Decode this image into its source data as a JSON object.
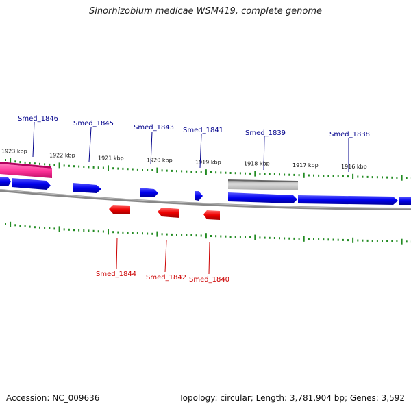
{
  "title": "Sinorhizobium medicae WSM419, complete genome",
  "footer": {
    "accession": "Accession: NC_009636",
    "summary": "Topology: circular; Length: 3,781,904 bp; Genes: 3,592"
  },
  "colors": {
    "forward_gene": "#0000ee",
    "reverse_gene": "#ee0000",
    "highlight_gene": "#ff3399",
    "other_feature": "#bbbbbb",
    "ticks": "#228b22",
    "backbone": "#888888",
    "forward_label": "#00008b",
    "reverse_label": "#cc0000"
  },
  "scale": {
    "labels": [
      "1923 kbp",
      "1922 kbp",
      "1921 kbp",
      "1920 kbp",
      "1919 kbp",
      "1918 kbp",
      "1917 kbp",
      "1916 kbp"
    ]
  },
  "forward_gene_labels": [
    "Smed_1846",
    "Smed_1845",
    "Smed_1843",
    "Smed_1841",
    "Smed_1839",
    "Smed_1838"
  ],
  "reverse_gene_labels": [
    "Smed_1844",
    "Smed_1842",
    "Smed_1840"
  ]
}
